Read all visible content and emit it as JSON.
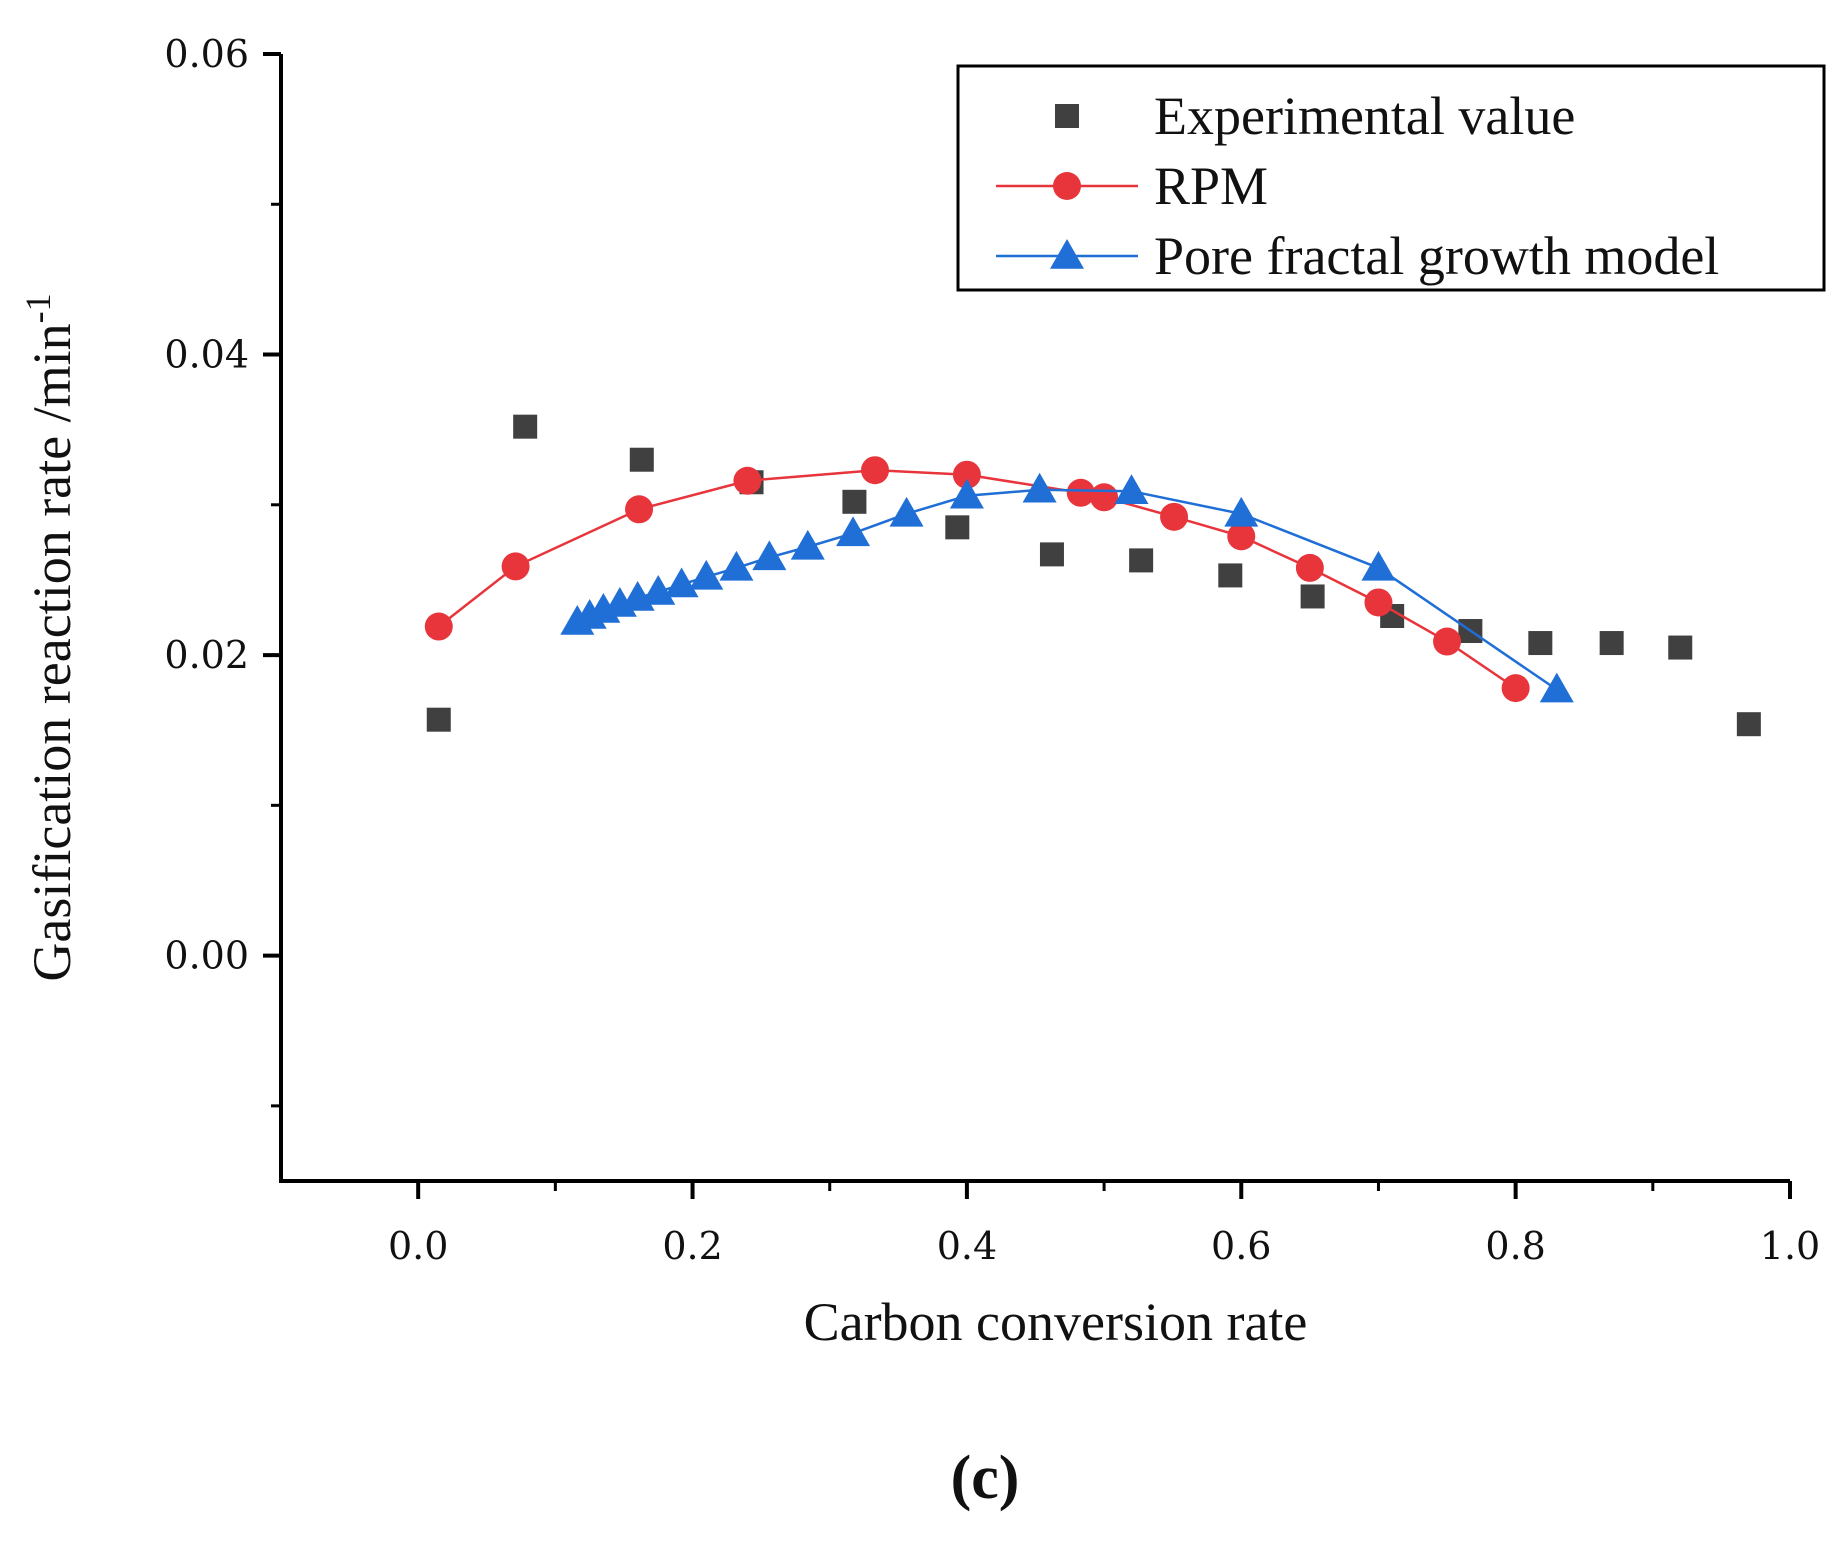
{
  "chart_data": {
    "type": "scatter",
    "title": "",
    "xlabel": "Carbon conversion rate",
    "ylabel": "Gasification reaction rate /min",
    "ylabel_superscript": "-1",
    "panel_label": "(c)",
    "xlim": [
      -0.1,
      1.0
    ],
    "ylim": [
      -0.015,
      0.06
    ],
    "x_ticks": [
      0.0,
      0.2,
      0.4,
      0.6,
      0.8,
      1.0
    ],
    "x_tick_labels": [
      "0.0",
      "0.2",
      "0.4",
      "0.6",
      "0.8",
      "1.0"
    ],
    "y_ticks": [
      0.0,
      0.02,
      0.04,
      0.06
    ],
    "y_tick_labels": [
      "0.00",
      "0.02",
      "0.04",
      "0.06"
    ],
    "grid": false,
    "legend_position": "top-right",
    "series": [
      {
        "name": "Experimental value",
        "style": "markers",
        "marker": "square",
        "color": "#404040",
        "x": [
          0.015,
          0.078,
          0.163,
          0.243,
          0.318,
          0.393,
          0.462,
          0.527,
          0.592,
          0.652,
          0.71,
          0.767,
          0.818,
          0.87,
          0.92,
          0.97
        ],
        "y": [
          0.0157,
          0.0352,
          0.033,
          0.0315,
          0.0302,
          0.0285,
          0.0267,
          0.0263,
          0.0253,
          0.0239,
          0.0226,
          0.0216,
          0.0208,
          0.0208,
          0.0205,
          0.0154
        ]
      },
      {
        "name": "RPM",
        "style": "line+markers",
        "marker": "circle",
        "color": "#e8353c",
        "x": [
          0.015,
          0.071,
          0.161,
          0.24,
          0.333,
          0.4,
          0.483,
          0.5,
          0.551,
          0.6,
          0.65,
          0.7,
          0.75,
          0.8
        ],
        "y": [
          0.0219,
          0.0259,
          0.0297,
          0.0316,
          0.0323,
          0.032,
          0.0308,
          0.0305,
          0.0292,
          0.0279,
          0.0258,
          0.0235,
          0.0209,
          0.0178
        ]
      },
      {
        "name": "Pore fractal growth model",
        "style": "line+markers",
        "marker": "triangle",
        "color": "#1f6fd6",
        "x": [
          0.116,
          0.125,
          0.135,
          0.147,
          0.16,
          0.175,
          0.192,
          0.21,
          0.232,
          0.256,
          0.284,
          0.317,
          0.356,
          0.4,
          0.453,
          0.52,
          0.6,
          0.7,
          0.83
        ],
        "y": [
          0.0222,
          0.0226,
          0.023,
          0.0234,
          0.0238,
          0.0242,
          0.0247,
          0.0252,
          0.0258,
          0.0265,
          0.0272,
          0.0281,
          0.0294,
          0.0306,
          0.031,
          0.0309,
          0.0294,
          0.0258,
          0.0177
        ]
      }
    ]
  }
}
